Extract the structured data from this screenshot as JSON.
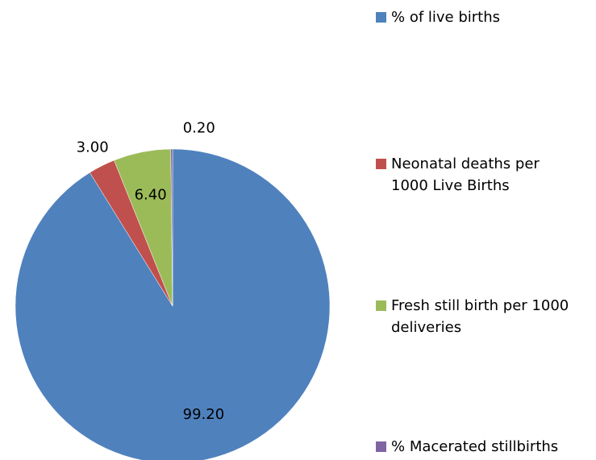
{
  "chart_data": {
    "type": "pie",
    "categories": [
      "% of live births",
      "Neonatal deaths per 1000 Live Births",
      "Fresh still birth per 1000 deliveries",
      "% Macerated stillbirths"
    ],
    "values": [
      99.2,
      3.0,
      6.4,
      0.2
    ],
    "value_labels": [
      "99.20",
      "3.00",
      "6.40",
      "0.20"
    ],
    "colors": [
      "#4f81bd",
      "#c0504d",
      "#9bbb59",
      "#8064a2"
    ],
    "legend": "right"
  }
}
